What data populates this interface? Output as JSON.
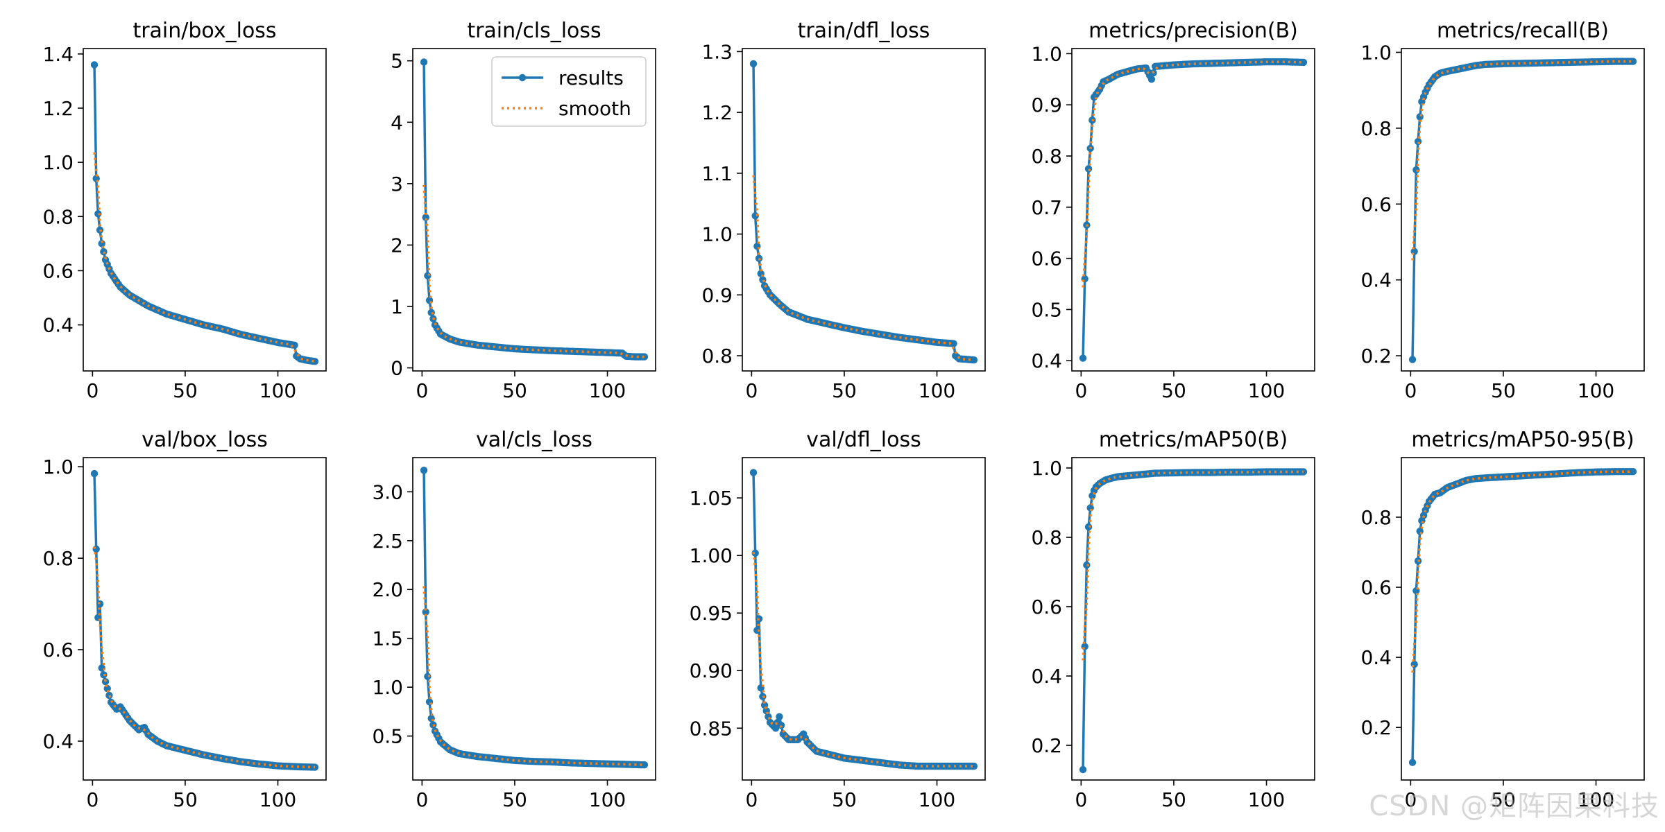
{
  "colors": {
    "results": "#1f77b4",
    "smooth": "#ff7f0e",
    "axis": "#000000"
  },
  "legend": {
    "results_label": "results",
    "smooth_label": "smooth"
  },
  "watermark": "CSDN @矩阵因果科技",
  "chart_data": [
    {
      "type": "line",
      "title": "train/box_loss",
      "xlabel": "",
      "ylabel": "",
      "xlim": [
        -5,
        126
      ],
      "ylim": [
        0.23,
        1.42
      ],
      "xticks": [
        0,
        50,
        100
      ],
      "yticks": [
        0.4,
        0.6,
        0.8,
        1.0,
        1.2,
        1.4
      ],
      "ytick_labels": [
        "0.4",
        "0.6",
        "0.8",
        "1.0",
        "1.2",
        "1.4"
      ],
      "legend": false,
      "keypoints": [
        [
          1,
          1.36
        ],
        [
          2,
          0.94
        ],
        [
          3,
          0.81
        ],
        [
          4,
          0.75
        ],
        [
          5,
          0.7
        ],
        [
          7,
          0.64
        ],
        [
          10,
          0.59
        ],
        [
          15,
          0.54
        ],
        [
          20,
          0.51
        ],
        [
          30,
          0.47
        ],
        [
          40,
          0.44
        ],
        [
          50,
          0.42
        ],
        [
          60,
          0.4
        ],
        [
          70,
          0.385
        ],
        [
          80,
          0.365
        ],
        [
          90,
          0.35
        ],
        [
          100,
          0.335
        ],
        [
          109,
          0.325
        ],
        [
          110,
          0.285
        ],
        [
          112,
          0.275
        ],
        [
          115,
          0.27
        ],
        [
          120,
          0.265
        ]
      ]
    },
    {
      "type": "line",
      "title": "train/cls_loss",
      "xlabel": "",
      "ylabel": "",
      "xlim": [
        -5,
        126
      ],
      "ylim": [
        -0.05,
        5.2
      ],
      "xticks": [
        0,
        50,
        100
      ],
      "yticks": [
        0,
        1,
        2,
        3,
        4,
        5
      ],
      "ytick_labels": [
        "0",
        "1",
        "2",
        "3",
        "4",
        "5"
      ],
      "legend": true,
      "keypoints": [
        [
          1,
          4.98
        ],
        [
          2,
          2.45
        ],
        [
          3,
          1.5
        ],
        [
          4,
          1.1
        ],
        [
          5,
          0.9
        ],
        [
          7,
          0.7
        ],
        [
          10,
          0.55
        ],
        [
          15,
          0.47
        ],
        [
          20,
          0.42
        ],
        [
          30,
          0.37
        ],
        [
          50,
          0.31
        ],
        [
          70,
          0.28
        ],
        [
          90,
          0.26
        ],
        [
          108,
          0.24
        ],
        [
          110,
          0.19
        ],
        [
          115,
          0.18
        ],
        [
          120,
          0.18
        ]
      ]
    },
    {
      "type": "line",
      "title": "train/dfl_loss",
      "xlabel": "",
      "ylabel": "",
      "xlim": [
        -5,
        126
      ],
      "ylim": [
        0.775,
        1.305
      ],
      "xticks": [
        0,
        50,
        100
      ],
      "yticks": [
        0.8,
        0.9,
        1.0,
        1.1,
        1.2,
        1.3
      ],
      "ytick_labels": [
        "0.8",
        "0.9",
        "1.0",
        "1.1",
        "1.2",
        "1.3"
      ],
      "legend": false,
      "keypoints": [
        [
          1,
          1.28
        ],
        [
          2,
          1.03
        ],
        [
          3,
          0.98
        ],
        [
          4,
          0.96
        ],
        [
          5,
          0.935
        ],
        [
          7,
          0.915
        ],
        [
          10,
          0.9
        ],
        [
          15,
          0.885
        ],
        [
          20,
          0.872
        ],
        [
          30,
          0.86
        ],
        [
          40,
          0.853
        ],
        [
          50,
          0.846
        ],
        [
          60,
          0.84
        ],
        [
          70,
          0.835
        ],
        [
          80,
          0.83
        ],
        [
          90,
          0.826
        ],
        [
          100,
          0.822
        ],
        [
          109,
          0.82
        ],
        [
          110,
          0.8
        ],
        [
          112,
          0.795
        ],
        [
          120,
          0.793
        ]
      ]
    },
    {
      "type": "line",
      "title": "metrics/precision(B)",
      "xlabel": "",
      "ylabel": "",
      "xlim": [
        -5,
        126
      ],
      "ylim": [
        0.38,
        1.01
      ],
      "xticks": [
        0,
        50,
        100
      ],
      "yticks": [
        0.4,
        0.5,
        0.6,
        0.7,
        0.8,
        0.9,
        1.0
      ],
      "ytick_labels": [
        "0.4",
        "0.5",
        "0.6",
        "0.7",
        "0.8",
        "0.9",
        "1.0"
      ],
      "legend": false,
      "keypoints": [
        [
          1,
          0.405
        ],
        [
          2,
          0.56
        ],
        [
          3,
          0.665
        ],
        [
          4,
          0.775
        ],
        [
          5,
          0.815
        ],
        [
          6,
          0.87
        ],
        [
          7,
          0.915
        ],
        [
          8,
          0.92
        ],
        [
          10,
          0.93
        ],
        [
          12,
          0.945
        ],
        [
          15,
          0.95
        ],
        [
          20,
          0.96
        ],
        [
          25,
          0.965
        ],
        [
          30,
          0.97
        ],
        [
          35,
          0.972
        ],
        [
          38,
          0.95
        ],
        [
          40,
          0.975
        ],
        [
          50,
          0.978
        ],
        [
          60,
          0.98
        ],
        [
          70,
          0.981
        ],
        [
          80,
          0.982
        ],
        [
          90,
          0.983
        ],
        [
          100,
          0.984
        ],
        [
          110,
          0.984
        ],
        [
          120,
          0.983
        ]
      ]
    },
    {
      "type": "line",
      "title": "metrics/recall(B)",
      "xlabel": "",
      "ylabel": "",
      "xlim": [
        -5,
        126
      ],
      "ylim": [
        0.16,
        1.01
      ],
      "xticks": [
        0,
        50,
        100
      ],
      "yticks": [
        0.2,
        0.4,
        0.6,
        0.8,
        1.0
      ],
      "ytick_labels": [
        "0.2",
        "0.4",
        "0.6",
        "0.8",
        "1.0"
      ],
      "legend": false,
      "keypoints": [
        [
          1,
          0.19
        ],
        [
          2,
          0.475
        ],
        [
          3,
          0.69
        ],
        [
          4,
          0.765
        ],
        [
          5,
          0.83
        ],
        [
          6,
          0.87
        ],
        [
          8,
          0.895
        ],
        [
          10,
          0.915
        ],
        [
          13,
          0.935
        ],
        [
          16,
          0.945
        ],
        [
          20,
          0.95
        ],
        [
          25,
          0.955
        ],
        [
          30,
          0.96
        ],
        [
          35,
          0.965
        ],
        [
          40,
          0.968
        ],
        [
          50,
          0.97
        ],
        [
          60,
          0.971
        ],
        [
          70,
          0.972
        ],
        [
          80,
          0.973
        ],
        [
          90,
          0.974
        ],
        [
          100,
          0.975
        ],
        [
          110,
          0.976
        ],
        [
          120,
          0.976
        ]
      ]
    },
    {
      "type": "line",
      "title": "val/box_loss",
      "xlabel": "",
      "ylabel": "",
      "xlim": [
        -5,
        126
      ],
      "ylim": [
        0.315,
        1.02
      ],
      "xticks": [
        0,
        50,
        100
      ],
      "yticks": [
        0.4,
        0.6,
        0.8,
        1.0
      ],
      "ytick_labels": [
        "0.4",
        "0.6",
        "0.8",
        "1.0"
      ],
      "legend": false,
      "keypoints": [
        [
          1,
          0.985
        ],
        [
          2,
          0.82
        ],
        [
          3,
          0.67
        ],
        [
          4,
          0.7
        ],
        [
          5,
          0.56
        ],
        [
          7,
          0.53
        ],
        [
          10,
          0.485
        ],
        [
          13,
          0.47
        ],
        [
          15,
          0.475
        ],
        [
          20,
          0.445
        ],
        [
          25,
          0.425
        ],
        [
          28,
          0.43
        ],
        [
          30,
          0.415
        ],
        [
          35,
          0.4
        ],
        [
          40,
          0.39
        ],
        [
          45,
          0.385
        ],
        [
          50,
          0.38
        ],
        [
          55,
          0.375
        ],
        [
          60,
          0.37
        ],
        [
          70,
          0.362
        ],
        [
          80,
          0.355
        ],
        [
          90,
          0.35
        ],
        [
          100,
          0.346
        ],
        [
          110,
          0.344
        ],
        [
          120,
          0.343
        ]
      ]
    },
    {
      "type": "line",
      "title": "val/cls_loss",
      "xlabel": "",
      "ylabel": "",
      "xlim": [
        -5,
        126
      ],
      "ylim": [
        0.05,
        3.35
      ],
      "xticks": [
        0,
        50,
        100
      ],
      "yticks": [
        0.5,
        1.0,
        1.5,
        2.0,
        2.5,
        3.0
      ],
      "ytick_labels": [
        "0.5",
        "1.0",
        "1.5",
        "2.0",
        "2.5",
        "3.0"
      ],
      "legend": false,
      "keypoints": [
        [
          1,
          3.22
        ],
        [
          2,
          1.77
        ],
        [
          3,
          1.11
        ],
        [
          4,
          0.85
        ],
        [
          5,
          0.68
        ],
        [
          7,
          0.55
        ],
        [
          10,
          0.44
        ],
        [
          15,
          0.36
        ],
        [
          20,
          0.32
        ],
        [
          30,
          0.29
        ],
        [
          40,
          0.27
        ],
        [
          50,
          0.25
        ],
        [
          60,
          0.24
        ],
        [
          70,
          0.235
        ],
        [
          80,
          0.225
        ],
        [
          90,
          0.22
        ],
        [
          100,
          0.215
        ],
        [
          110,
          0.21
        ],
        [
          120,
          0.205
        ]
      ]
    },
    {
      "type": "line",
      "title": "val/dfl_loss",
      "xlabel": "",
      "ylabel": "",
      "xlim": [
        -5,
        126
      ],
      "ylim": [
        0.805,
        1.085
      ],
      "xticks": [
        0,
        50,
        100
      ],
      "yticks": [
        0.85,
        0.9,
        0.95,
        1.0,
        1.05
      ],
      "ytick_labels": [
        "0.85",
        "0.90",
        "0.95",
        "1.00",
        "1.05"
      ],
      "legend": false,
      "keypoints": [
        [
          1,
          1.072
        ],
        [
          2,
          1.002
        ],
        [
          3,
          0.935
        ],
        [
          4,
          0.945
        ],
        [
          5,
          0.885
        ],
        [
          7,
          0.87
        ],
        [
          10,
          0.855
        ],
        [
          13,
          0.85
        ],
        [
          15,
          0.86
        ],
        [
          17,
          0.845
        ],
        [
          20,
          0.84
        ],
        [
          25,
          0.84
        ],
        [
          28,
          0.845
        ],
        [
          30,
          0.838
        ],
        [
          35,
          0.83
        ],
        [
          40,
          0.828
        ],
        [
          45,
          0.826
        ],
        [
          50,
          0.824
        ],
        [
          60,
          0.822
        ],
        [
          70,
          0.82
        ],
        [
          80,
          0.818
        ],
        [
          90,
          0.817
        ],
        [
          100,
          0.817
        ],
        [
          110,
          0.817
        ],
        [
          120,
          0.817
        ]
      ]
    },
    {
      "type": "line",
      "title": "metrics/mAP50(B)",
      "xlabel": "",
      "ylabel": "",
      "xlim": [
        -5,
        126
      ],
      "ylim": [
        0.1,
        1.03
      ],
      "xticks": [
        0,
        50,
        100
      ],
      "yticks": [
        0.2,
        0.4,
        0.6,
        0.8,
        1.0
      ],
      "ytick_labels": [
        "0.2",
        "0.4",
        "0.6",
        "0.8",
        "1.0"
      ],
      "legend": false,
      "keypoints": [
        [
          1,
          0.13
        ],
        [
          2,
          0.485
        ],
        [
          3,
          0.72
        ],
        [
          4,
          0.83
        ],
        [
          5,
          0.885
        ],
        [
          6,
          0.92
        ],
        [
          7,
          0.935
        ],
        [
          8,
          0.945
        ],
        [
          10,
          0.955
        ],
        [
          13,
          0.965
        ],
        [
          16,
          0.97
        ],
        [
          20,
          0.975
        ],
        [
          30,
          0.98
        ],
        [
          40,
          0.985
        ],
        [
          50,
          0.986
        ],
        [
          60,
          0.987
        ],
        [
          70,
          0.987
        ],
        [
          80,
          0.988
        ],
        [
          90,
          0.988
        ],
        [
          100,
          0.989
        ],
        [
          110,
          0.989
        ],
        [
          120,
          0.989
        ]
      ]
    },
    {
      "type": "line",
      "title": "metrics/mAP50-95(B)",
      "xlabel": "",
      "ylabel": "",
      "xlim": [
        -5,
        126
      ],
      "ylim": [
        0.05,
        0.97
      ],
      "xticks": [
        0,
        50,
        100
      ],
      "yticks": [
        0.2,
        0.4,
        0.6,
        0.8
      ],
      "ytick_labels": [
        "0.2",
        "0.4",
        "0.6",
        "0.8"
      ],
      "legend": false,
      "keypoints": [
        [
          1,
          0.1
        ],
        [
          2,
          0.38
        ],
        [
          3,
          0.59
        ],
        [
          4,
          0.675
        ],
        [
          5,
          0.76
        ],
        [
          6,
          0.79
        ],
        [
          8,
          0.82
        ],
        [
          10,
          0.845
        ],
        [
          13,
          0.865
        ],
        [
          16,
          0.87
        ],
        [
          20,
          0.885
        ],
        [
          25,
          0.895
        ],
        [
          30,
          0.905
        ],
        [
          35,
          0.91
        ],
        [
          40,
          0.912
        ],
        [
          50,
          0.915
        ],
        [
          60,
          0.918
        ],
        [
          70,
          0.921
        ],
        [
          80,
          0.924
        ],
        [
          90,
          0.927
        ],
        [
          100,
          0.929
        ],
        [
          110,
          0.93
        ],
        [
          120,
          0.93
        ]
      ]
    }
  ]
}
